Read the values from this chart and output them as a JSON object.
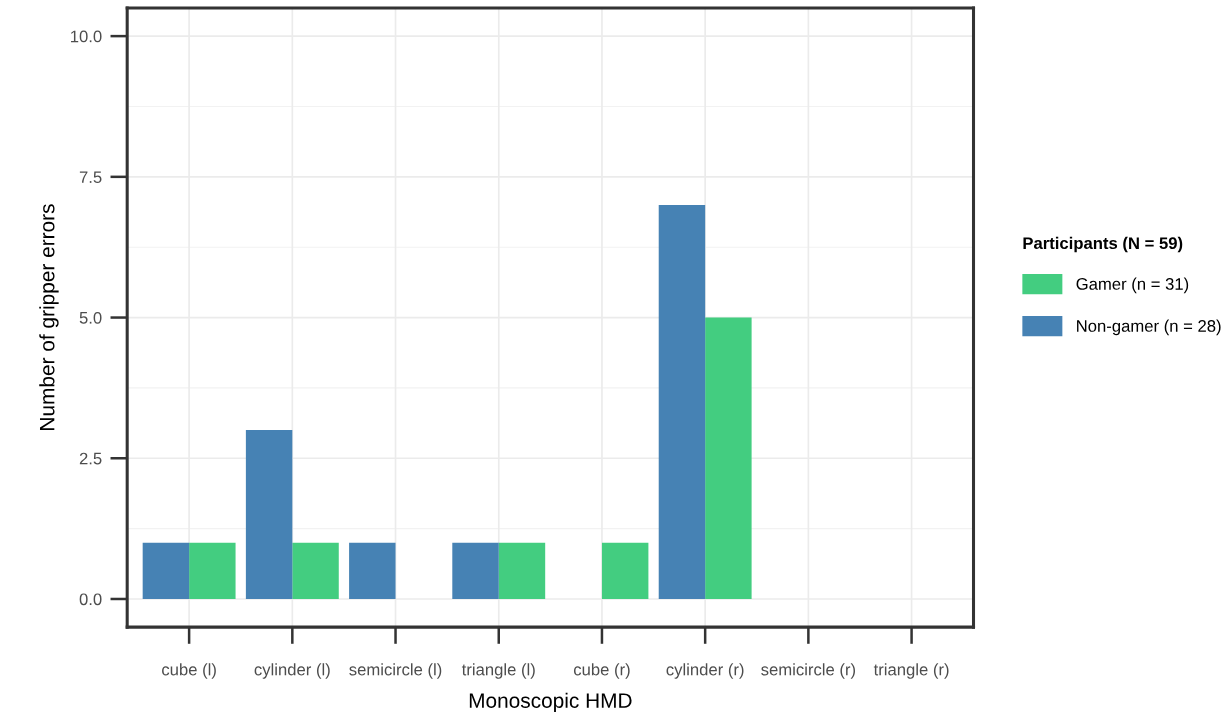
{
  "chart_data": {
    "type": "bar",
    "xlabel": "Monoscopic HMD",
    "ylabel": "Number of gripper errors",
    "legend_title": "Participants (N = 59)",
    "categories": [
      "cube (l)",
      "cylinder (l)",
      "semicircle (l)",
      "triangle (l)",
      "cube (r)",
      "cylinder (r)",
      "semicircle (r)",
      "triangle (r)"
    ],
    "series": [
      {
        "name": "Gamer (n = 31)",
        "color": "#43cd80",
        "values": [
          1,
          1,
          0,
          1,
          1,
          5,
          0,
          0
        ]
      },
      {
        "name": "Non-gamer (n = 28)",
        "color": "#4682b4",
        "values": [
          1,
          3,
          1,
          1,
          0,
          7,
          0,
          0
        ]
      }
    ],
    "ylim": [
      -0.5,
      10.5
    ],
    "yticks": [
      {
        "value": 0,
        "label": "0.0"
      },
      {
        "value": 2.5,
        "label": "2.5"
      },
      {
        "value": 5,
        "label": "5.0"
      },
      {
        "value": 7.5,
        "label": "7.5"
      },
      {
        "value": 10,
        "label": "10.0"
      }
    ],
    "grid": true,
    "legend": "right"
  }
}
